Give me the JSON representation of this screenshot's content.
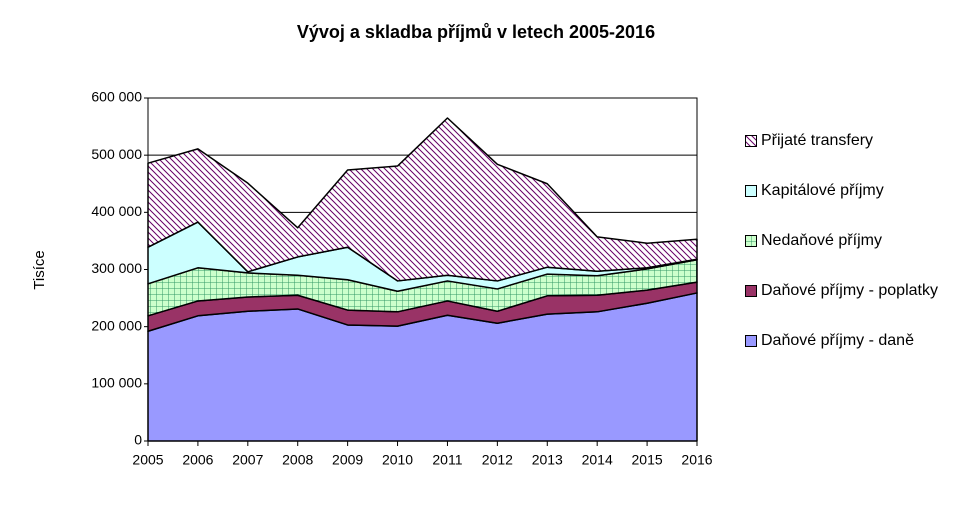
{
  "chart_data": {
    "type": "stacked-area",
    "title": "Vývoj a skladba příjmů v letech 2005-2016",
    "y_label": "Tisíce",
    "categories": [
      "2005",
      "2006",
      "2007",
      "2008",
      "2009",
      "2010",
      "2011",
      "2012",
      "2013",
      "2014",
      "2015",
      "2016"
    ],
    "ylim": [
      0,
      600000
    ],
    "yticks": [
      0,
      {
        "value": 100000,
        "label": "100 000"
      },
      {
        "value": 200000,
        "label": "200 000"
      },
      {
        "value": 300000,
        "label": "300 000"
      },
      {
        "value": 400000,
        "label": "400 000"
      },
      {
        "value": 500000,
        "label": "500 000"
      },
      {
        "value": 600000,
        "label": "600 000"
      }
    ],
    "grid": true,
    "legend": "right",
    "series": [
      {
        "name": "Daňové příjmy - daně",
        "color": "#9999ff",
        "values": [
          192000,
          219000,
          227000,
          231000,
          203000,
          201000,
          220000,
          206000,
          222000,
          226000,
          241000,
          259000
        ]
      },
      {
        "name": "Daňové příjmy - poplatky",
        "color": "#993366",
        "values": [
          27000,
          26000,
          25000,
          24000,
          26000,
          25000,
          25000,
          21000,
          32000,
          29000,
          23000,
          19000
        ]
      },
      {
        "name": "Nedaňové příjmy",
        "color": "#339966",
        "pattern": "grid",
        "values": [
          56000,
          58000,
          42000,
          35000,
          53000,
          36000,
          35000,
          39000,
          38000,
          34000,
          37000,
          39000
        ]
      },
      {
        "name": "Kapitálové příjmy",
        "color": "#ccffff",
        "values": [
          64000,
          80000,
          2000,
          32000,
          57000,
          18000,
          10000,
          14000,
          12000,
          8000,
          2000,
          1000
        ]
      },
      {
        "name": "Přijaté transfery",
        "color": "#660066",
        "pattern": "hatch",
        "values": [
          147000,
          128000,
          155000,
          51000,
          135000,
          201000,
          275000,
          204000,
          146000,
          60000,
          43000,
          35000
        ]
      }
    ]
  }
}
